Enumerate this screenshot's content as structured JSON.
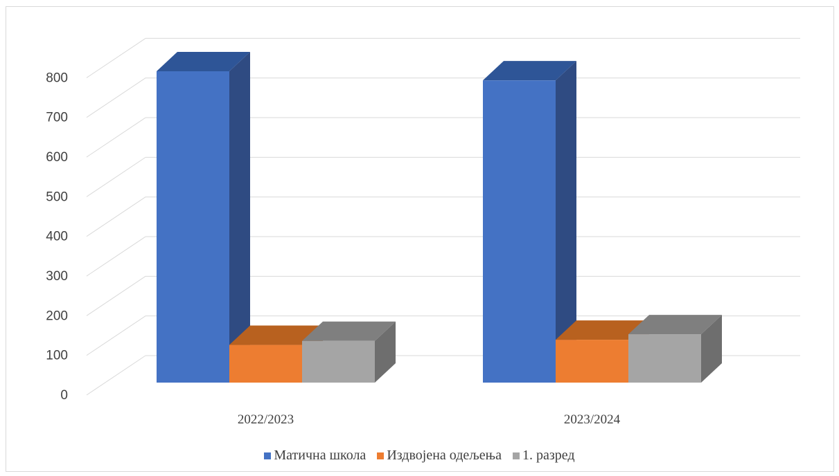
{
  "chart_data": {
    "type": "bar",
    "categories": [
      "2022/2023",
      "2023/2024"
    ],
    "series": [
      {
        "name": "Матична школа",
        "values": [
          785,
          762
        ],
        "color": "#4472c4",
        "side_color": "#2f4b82",
        "top_color": "#2e5597"
      },
      {
        "name": "Издвојена одељења",
        "values": [
          95,
          108
        ],
        "color": "#ed7d31",
        "side_color": "#a75820",
        "top_color": "#b8611f"
      },
      {
        "name": "1. разред",
        "values": [
          105,
          122
        ],
        "color": "#a5a5a5",
        "side_color": "#6e6e6e",
        "top_color": "#7f7f7f"
      }
    ],
    "y_ticks": [
      "0",
      "100",
      "200",
      "300",
      "400",
      "500",
      "600",
      "700",
      "800"
    ],
    "ylim": [
      0,
      800
    ],
    "grid": true,
    "legend_position": "bottom",
    "style": "3d-clustered-column"
  }
}
